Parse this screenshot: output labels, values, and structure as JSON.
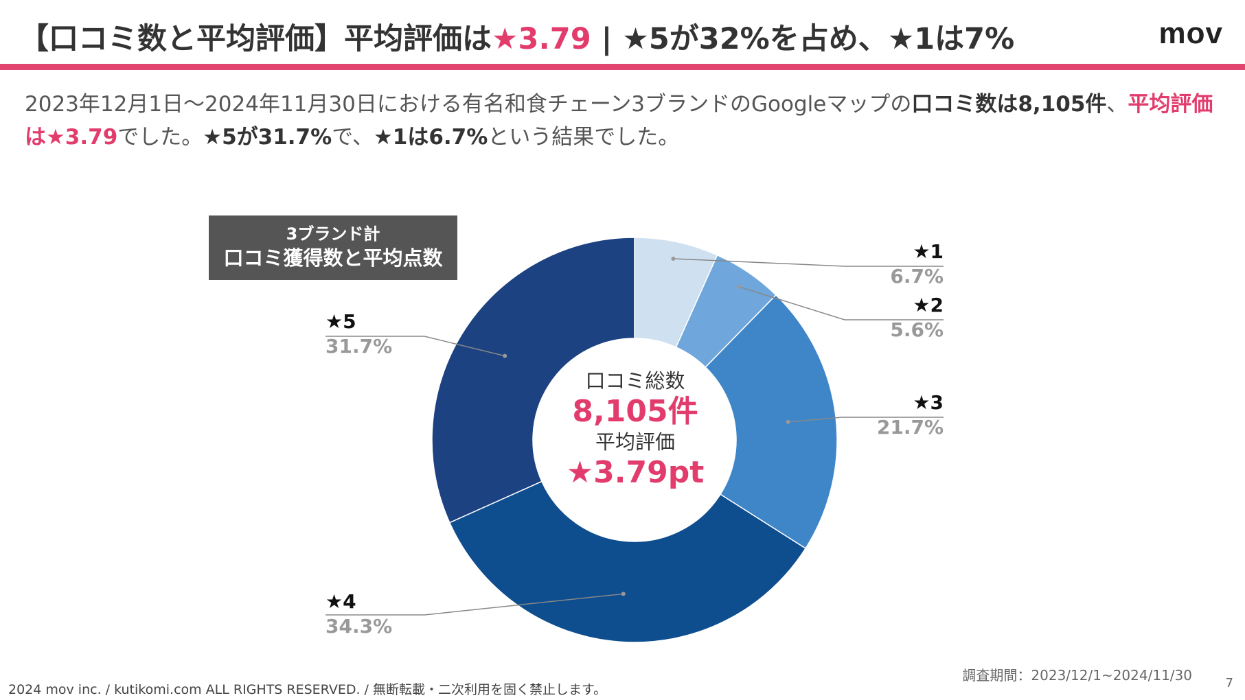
{
  "header": {
    "title_pre": "【口コミ数と平均評価】平均評価は",
    "title_hl": "★3.79",
    "title_post": " | ★5が32%を占め、★1は7%",
    "logo": "mov",
    "accent_color": "#e2456f"
  },
  "description": {
    "p1": "2023年12月1日〜2024年11月30日における有名和食チェーン3ブランドのGoogleマップの",
    "b1": "口コミ数は8,105件",
    "p2": "、",
    "pink1": "平均評価は★3.79",
    "p3": "でした。",
    "b2": "★5が31.7%",
    "p4": "で、",
    "b3": "★1は6.7%",
    "p5": "という結果でした。"
  },
  "badge": {
    "line1": "3ブランド計",
    "line2": "口コミ獲得数と平均点数"
  },
  "center": {
    "label1": "口コミ総数",
    "total": "8,105件",
    "label2": "平均評価",
    "avg": "★3.79pt"
  },
  "chart_data": {
    "type": "pie",
    "donut": true,
    "title": "3ブランド計 口コミ獲得数と平均点数",
    "categories": [
      "★1",
      "★2",
      "★3",
      "★4",
      "★5"
    ],
    "values": [
      6.7,
      5.6,
      21.7,
      34.3,
      31.7
    ],
    "labels": [
      "6.7%",
      "5.6%",
      "21.7%",
      "34.3%",
      "31.7%"
    ],
    "colors": [
      "#cfe0f1",
      "#6fa6db",
      "#3f86c8",
      "#0e4d8e",
      "#1d4282"
    ],
    "start": "12 o'clock, clockwise"
  },
  "footer": {
    "copyright": "2024 mov inc. / kutikomi.com ALL RIGHTS RESERVED. / 無断転載・二次利用を固く禁止します。",
    "period": "調査期間：2023/12/1~2024/11/30",
    "page": "7"
  }
}
